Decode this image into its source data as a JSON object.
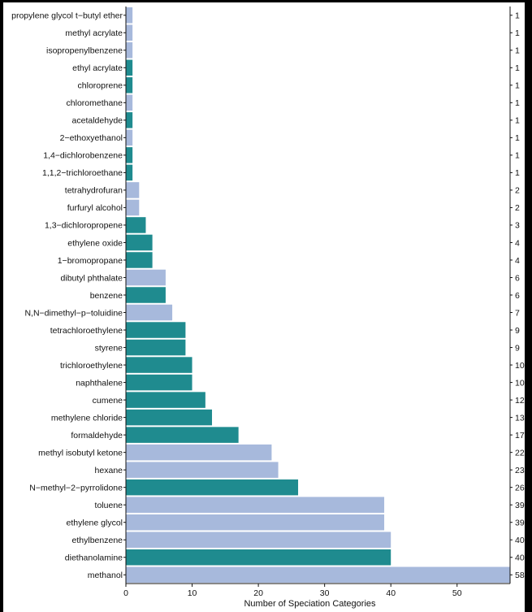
{
  "chart_data": {
    "type": "bar",
    "orientation": "horizontal",
    "title": "",
    "xlabel": "Number of Speciation Categories",
    "ylabel": "",
    "xlim": [
      0,
      58
    ],
    "xticks": [
      "0",
      "10",
      "20",
      "30",
      "40",
      "50"
    ],
    "grid": false,
    "colors": {
      "teal": "#1f8b8f",
      "lightblue": "#a7b9dc"
    },
    "categories": [
      "propylene glycol t−butyl ether",
      "methyl acrylate",
      "isopropenylbenzene",
      "ethyl acrylate",
      "chloroprene",
      "chloromethane",
      "acetaldehyde",
      "2−ethoxyethanol",
      "1,4−dichlorobenzene",
      "1,1,2−trichloroethane",
      "tetrahydrofuran",
      "furfuryl alcohol",
      "1,3−dichloropropene",
      "ethylene oxide",
      "1−bromopropane",
      "dibutyl phthalate",
      "benzene",
      "N,N−dimethyl−p−toluidine",
      "tetrachloroethylene",
      "styrene",
      "trichloroethylene",
      "naphthalene",
      "cumene",
      "methylene chloride",
      "formaldehyde",
      "methyl isobutyl ketone",
      "hexane",
      "N−methyl−2−pyrrolidone",
      "toluene",
      "ethylene glycol",
      "ethylbenzene",
      "diethanolamine",
      "methanol"
    ],
    "values": [
      1,
      1,
      1,
      1,
      1,
      1,
      1,
      1,
      1,
      1,
      2,
      2,
      3,
      4,
      4,
      6,
      6,
      7,
      9,
      9,
      10,
      10,
      12,
      13,
      17,
      22,
      23,
      26,
      39,
      39,
      40,
      40,
      58
    ],
    "value_labels": [
      "1",
      "1",
      "1",
      "1",
      "1",
      "1",
      "1",
      "1",
      "1",
      "1",
      "2",
      "2",
      "3",
      "4",
      "4",
      "6",
      "6",
      "7",
      "9",
      "9",
      "10",
      "10",
      "12",
      "13",
      "17",
      "22",
      "23",
      "26",
      "39",
      "39",
      "40",
      "40",
      "58"
    ],
    "bar_color_keys": [
      "lightblue",
      "lightblue",
      "lightblue",
      "teal",
      "teal",
      "lightblue",
      "teal",
      "lightblue",
      "teal",
      "teal",
      "lightblue",
      "lightblue",
      "teal",
      "teal",
      "teal",
      "lightblue",
      "teal",
      "lightblue",
      "teal",
      "teal",
      "teal",
      "teal",
      "teal",
      "teal",
      "teal",
      "lightblue",
      "lightblue",
      "teal",
      "lightblue",
      "lightblue",
      "lightblue",
      "teal",
      "lightblue"
    ]
  }
}
